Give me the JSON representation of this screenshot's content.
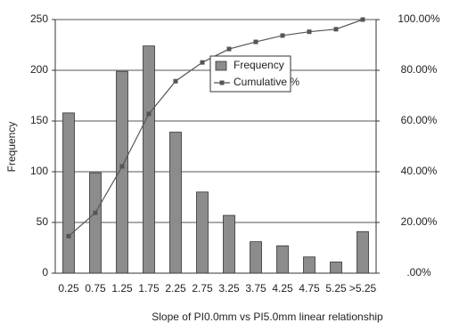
{
  "chart_data": {
    "type": "bar_line",
    "categories": [
      "0.25",
      "0.75",
      "1.25",
      "1.75",
      "2.25",
      "2.75",
      "3.25",
      "3.75",
      "4.25",
      "4.75",
      "5.25",
      ">5.25"
    ],
    "series": [
      {
        "name": "Frequency",
        "type": "bar",
        "color": "#8c8c8c",
        "values": [
          158,
          99,
          199,
          224,
          139,
          80,
          57,
          31,
          27,
          16,
          11,
          41
        ]
      },
      {
        "name": "Cumulative %",
        "type": "line",
        "axis": "y2",
        "color": "#555555",
        "values": [
          14.6,
          23.8,
          42.1,
          62.8,
          75.7,
          83.1,
          88.4,
          91.2,
          93.7,
          95.2,
          96.2,
          100
        ]
      }
    ],
    "x_label": "Slope of PI0.0mm vs PI5.0mm linear relationship",
    "y_label": "Frequency",
    "ylim": [
      0,
      250
    ],
    "yticks": [
      0,
      50,
      100,
      150,
      200,
      250
    ],
    "y2lim": [
      0,
      100
    ],
    "y2ticks": [
      {
        "value": 0,
        "label": ".00%"
      },
      {
        "value": 20,
        "label": "20.00%"
      },
      {
        "value": 40,
        "label": "40.00%"
      },
      {
        "value": 60,
        "label": "60.00%"
      },
      {
        "value": 80,
        "label": "80.00%"
      },
      {
        "value": 100,
        "label": "100.00%"
      }
    ],
    "grid": true
  }
}
